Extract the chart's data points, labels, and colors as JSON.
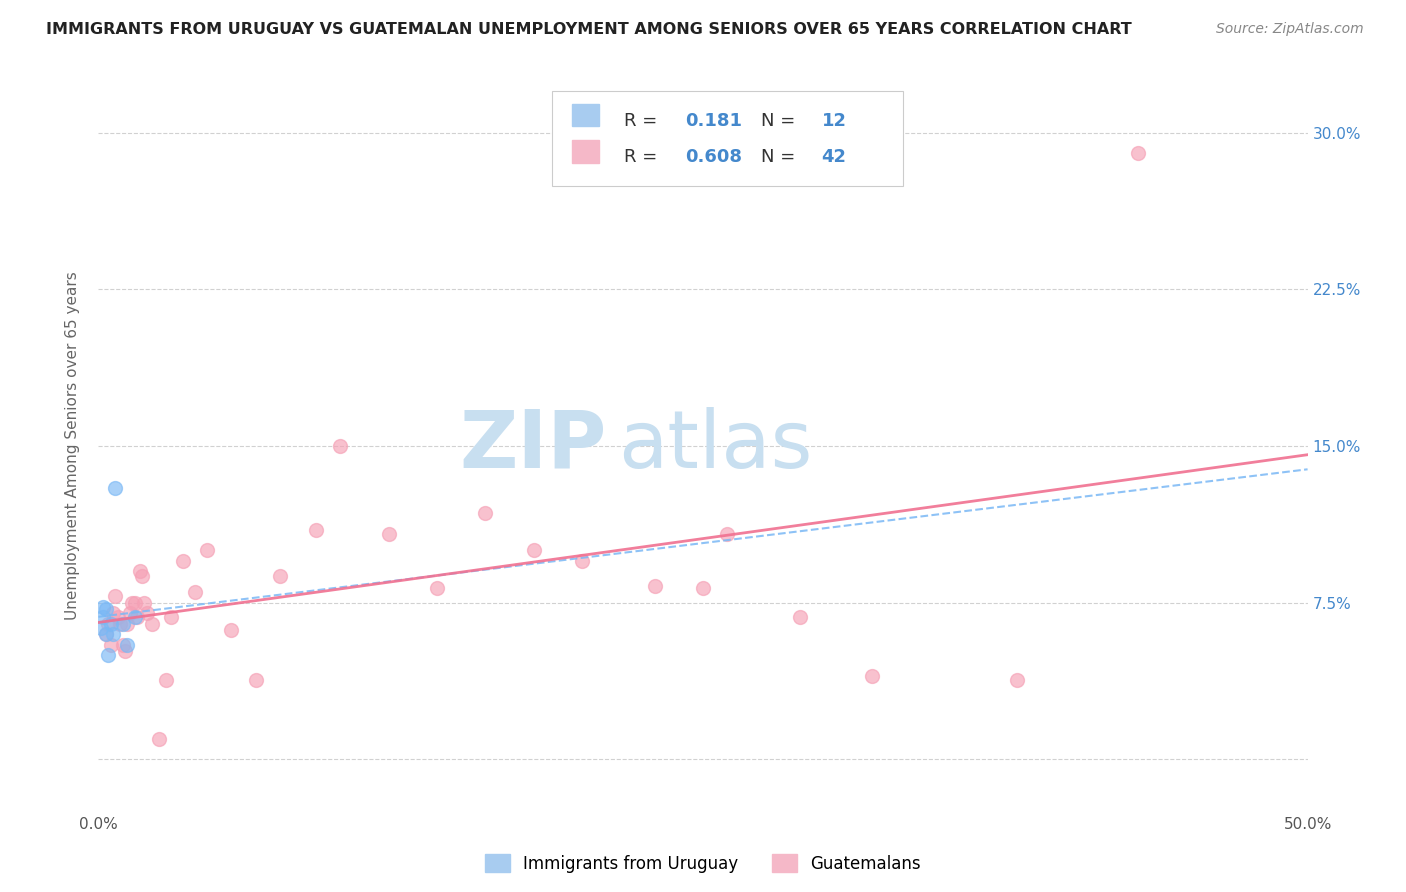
{
  "title": "IMMIGRANTS FROM URUGUAY VS GUATEMALAN UNEMPLOYMENT AMONG SENIORS OVER 65 YEARS CORRELATION CHART",
  "source": "Source: ZipAtlas.com",
  "ylabel": "Unemployment Among Seniors over 65 years",
  "xlim": [
    0.0,
    0.5
  ],
  "ylim": [
    -0.025,
    0.325
  ],
  "x_tick_pos": [
    0.0,
    0.1,
    0.2,
    0.3,
    0.4,
    0.5
  ],
  "x_tick_labels": [
    "0.0%",
    "",
    "",
    "",
    "",
    "50.0%"
  ],
  "y_tick_pos": [
    0.0,
    0.075,
    0.15,
    0.225,
    0.3
  ],
  "y_tick_labels_right": [
    "",
    "7.5%",
    "15.0%",
    "22.5%",
    "30.0%"
  ],
  "uruguay_x": [
    0.001,
    0.002,
    0.002,
    0.003,
    0.003,
    0.004,
    0.005,
    0.006,
    0.007,
    0.01,
    0.012,
    0.015
  ],
  "uruguay_y": [
    0.063,
    0.073,
    0.068,
    0.072,
    0.06,
    0.05,
    0.065,
    0.06,
    0.13,
    0.065,
    0.055,
    0.068
  ],
  "guatemala_x": [
    0.003,
    0.004,
    0.005,
    0.006,
    0.007,
    0.008,
    0.009,
    0.01,
    0.011,
    0.012,
    0.013,
    0.014,
    0.015,
    0.016,
    0.017,
    0.018,
    0.019,
    0.02,
    0.022,
    0.025,
    0.028,
    0.03,
    0.035,
    0.04,
    0.045,
    0.055,
    0.065,
    0.075,
    0.09,
    0.1,
    0.12,
    0.14,
    0.16,
    0.18,
    0.2,
    0.23,
    0.25,
    0.26,
    0.29,
    0.32,
    0.38,
    0.43
  ],
  "guatemala_y": [
    0.06,
    0.065,
    0.055,
    0.07,
    0.078,
    0.068,
    0.065,
    0.055,
    0.052,
    0.065,
    0.07,
    0.075,
    0.075,
    0.068,
    0.09,
    0.088,
    0.075,
    0.07,
    0.065,
    0.01,
    0.038,
    0.068,
    0.095,
    0.08,
    0.1,
    0.062,
    0.038,
    0.088,
    0.11,
    0.15,
    0.108,
    0.082,
    0.118,
    0.1,
    0.095,
    0.083,
    0.082,
    0.108,
    0.068,
    0.04,
    0.038,
    0.29
  ],
  "uruguay_dot_color": "#7ab8f5",
  "guatemala_dot_color": "#f5a0b5",
  "trendline_uru_color": "#7ab8f5",
  "trendline_guat_color": "#f07090",
  "legend_box_color": "#a8ccf0",
  "legend_pink_color": "#f5b8c8",
  "legend_text_color": "#4488cc",
  "watermark_zip_color": "#c8dff0",
  "watermark_atlas_color": "#c8dff0",
  "watermark_fontsize": 58
}
